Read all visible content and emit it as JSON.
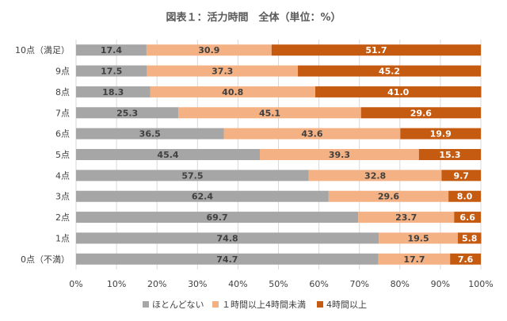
{
  "chart_data": {
    "type": "bar",
    "orientation": "horizontal",
    "stacked": true,
    "title": "図表１：活力時間　全体（単位：%）",
    "categories": [
      "10点（満足）",
      "9点",
      "8点",
      "7点",
      "6点",
      "5点",
      "4点",
      "3点",
      "2点",
      "1点",
      "0点（不満）"
    ],
    "series": [
      {
        "name": "ほとんどない",
        "color": "#a6a6a6",
        "values": [
          17.4,
          17.5,
          18.3,
          25.3,
          36.5,
          45.4,
          57.5,
          62.4,
          69.7,
          74.8,
          74.7
        ]
      },
      {
        "name": "１時間以上4時間未満",
        "color": "#f4b183",
        "values": [
          30.9,
          37.3,
          40.8,
          45.1,
          43.6,
          39.3,
          32.8,
          29.6,
          23.7,
          19.5,
          17.7
        ]
      },
      {
        "name": "4時間以上",
        "color": "#c55a11",
        "values": [
          51.7,
          45.2,
          41.0,
          29.6,
          19.9,
          15.3,
          9.7,
          8.0,
          6.6,
          5.8,
          7.6
        ]
      }
    ],
    "x_ticks": [
      "0%",
      "10%",
      "20%",
      "30%",
      "40%",
      "50%",
      "60%",
      "70%",
      "80%",
      "90%",
      "100%"
    ],
    "xlim": [
      0,
      100
    ],
    "grid": true,
    "legend_position": "bottom"
  }
}
